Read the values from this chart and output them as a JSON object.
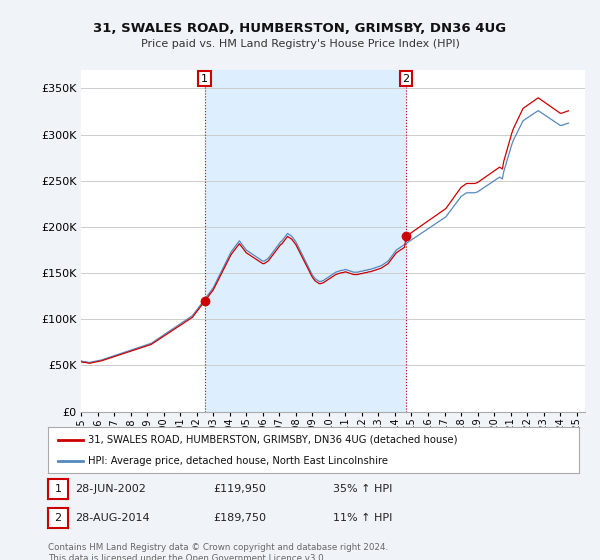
{
  "title": "31, SWALES ROAD, HUMBERSTON, GRIMSBY, DN36 4UG",
  "subtitle": "Price paid vs. HM Land Registry's House Price Index (HPI)",
  "ylim": [
    0,
    370000
  ],
  "yticks": [
    0,
    50000,
    100000,
    150000,
    200000,
    250000,
    300000,
    350000
  ],
  "xlim_start": 1995.0,
  "xlim_end": 2025.5,
  "sale1_date": 2002.49,
  "sale1_price": 119950,
  "sale1_label": "1",
  "sale2_date": 2014.66,
  "sale2_price": 189750,
  "sale2_label": "2",
  "red_line_color": "#cc0000",
  "blue_line_color": "#5588bb",
  "shade_color": "#ddeeff",
  "background_color": "#f0f4f8",
  "plot_bg_color": "#ffffff",
  "grid_color": "#cccccc",
  "legend_label_red": "31, SWALES ROAD, HUMBERSTON, GRIMSBY, DN36 4UG (detached house)",
  "legend_label_blue": "HPI: Average price, detached house, North East Lincolnshire",
  "footnote": "Contains HM Land Registry data © Crown copyright and database right 2024.\nThis data is licensed under the Open Government Licence v3.0.",
  "hpi_monthly": [
    55000,
    54500,
    54000,
    54200,
    53800,
    53500,
    53200,
    53500,
    53800,
    54200,
    54500,
    54800,
    55000,
    55200,
    55500,
    56000,
    56500,
    57000,
    57500,
    58000,
    58500,
    59000,
    59500,
    60000,
    60500,
    61000,
    61500,
    62000,
    62500,
    63000,
    63500,
    64000,
    64500,
    65000,
    65500,
    66000,
    66500,
    67000,
    67500,
    68000,
    68500,
    69000,
    69500,
    70000,
    70500,
    71000,
    71500,
    72000,
    72500,
    73000,
    73500,
    74000,
    75000,
    76000,
    77000,
    78000,
    79000,
    80000,
    81000,
    82000,
    83000,
    84000,
    85000,
    86000,
    87000,
    88000,
    89000,
    90000,
    91000,
    92000,
    93000,
    94000,
    95000,
    96000,
    97000,
    98000,
    99000,
    100000,
    101000,
    102000,
    103000,
    104000,
    106000,
    108000,
    110000,
    112000,
    114000,
    116000,
    118000,
    120000,
    122000,
    124000,
    126000,
    128000,
    130000,
    132000,
    134000,
    137000,
    140000,
    143000,
    146000,
    149000,
    152000,
    155000,
    158000,
    161000,
    164000,
    167000,
    170000,
    173000,
    175000,
    177000,
    179000,
    181000,
    183000,
    185000,
    183000,
    181000,
    179000,
    177000,
    175000,
    174000,
    173000,
    172000,
    171000,
    170000,
    169000,
    168000,
    167000,
    166000,
    165000,
    164000,
    163000,
    163000,
    164000,
    165000,
    166000,
    168000,
    170000,
    172000,
    174000,
    176000,
    178000,
    180000,
    182000,
    184000,
    185000,
    187000,
    189000,
    191000,
    193000,
    192000,
    191000,
    190000,
    188000,
    186000,
    184000,
    181000,
    178000,
    175000,
    172000,
    169000,
    166000,
    163000,
    160000,
    157000,
    154000,
    151000,
    148000,
    146000,
    144000,
    143000,
    142000,
    141000,
    141000,
    141500,
    142000,
    143000,
    144000,
    145000,
    146000,
    147000,
    148000,
    149000,
    150000,
    151000,
    151500,
    152000,
    152500,
    153000,
    153000,
    153500,
    154000,
    153500,
    153000,
    152500,
    152000,
    151500,
    151000,
    151000,
    151000,
    151000,
    151500,
    152000,
    152000,
    152500,
    153000,
    153000,
    153500,
    154000,
    154000,
    154500,
    155000,
    155500,
    156000,
    156500,
    157000,
    157500,
    158000,
    159000,
    160000,
    161000,
    162000,
    163000,
    165000,
    167000,
    169000,
    171000,
    173000,
    175000,
    176000,
    177000,
    178000,
    179000,
    180000,
    181000,
    182000,
    183000,
    184000,
    185000,
    186000,
    187000,
    188000,
    189000,
    190000,
    191000,
    192000,
    193000,
    194000,
    195000,
    196000,
    197000,
    198000,
    199000,
    200000,
    201000,
    202000,
    203000,
    204000,
    205000,
    206000,
    207000,
    208000,
    209000,
    210000,
    211000,
    213000,
    215000,
    217000,
    219000,
    221000,
    223000,
    225000,
    227000,
    229000,
    231000,
    233000,
    234000,
    235000,
    236000,
    237000,
    237000,
    237000,
    237000,
    237000,
    237000,
    237000,
    237500,
    238000,
    239000,
    240000,
    241000,
    242000,
    243000,
    244000,
    245000,
    246000,
    247000,
    248000,
    249000,
    250000,
    251000,
    252000,
    253000,
    254000,
    253000,
    252000,
    260000,
    265000,
    270000,
    275000,
    280000,
    285000,
    290000,
    294000,
    297000,
    300000,
    303000,
    306000,
    309000,
    312000,
    315000,
    316000,
    317000,
    318000,
    319000,
    320000,
    321000,
    322000,
    323000,
    324000,
    325000,
    326000,
    325000,
    324000,
    323000,
    322000,
    321000,
    320000,
    319000,
    318000,
    317000,
    316000,
    315000,
    314000,
    313000,
    312000,
    311000,
    310000,
    310000,
    310500,
    311000,
    311500,
    312000,
    312500
  ],
  "start_year": 1995,
  "start_month": 1
}
